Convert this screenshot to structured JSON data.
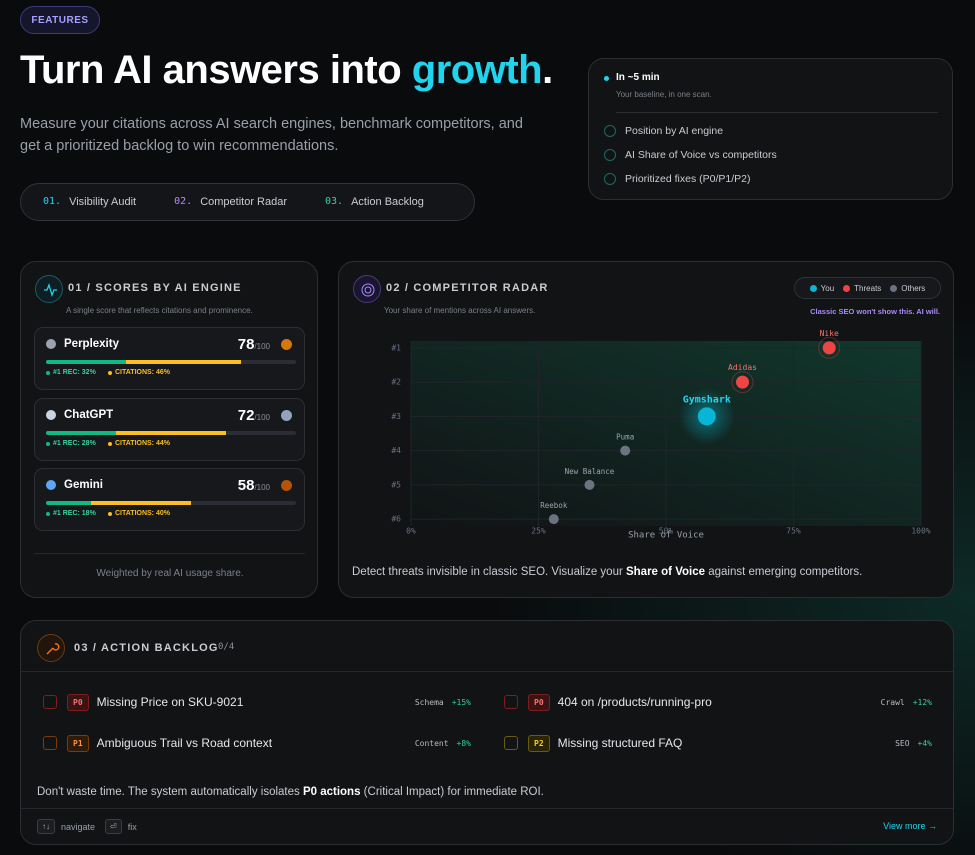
{
  "badge": "FEATURES",
  "hero": {
    "title_before": "Turn AI answers into ",
    "title_highlight": "growth",
    "title_after": ".",
    "subtitle": "Measure your citations across AI search engines, benchmark competitors, and get a prioritized backlog to win recommendations.",
    "tabs": [
      {
        "num": "01.",
        "label": "Visibility Audit"
      },
      {
        "num": "02.",
        "label": "Competitor Radar"
      },
      {
        "num": "03.",
        "label": "Action Backlog"
      }
    ]
  },
  "scan_card": {
    "title": "In ~5 min",
    "subtitle": "Your baseline, in one scan.",
    "checks": [
      "Position by AI engine",
      "AI Share of Voice vs competitors",
      "Prioritized fixes (P0/P1/P2)"
    ]
  },
  "scores": {
    "title": "01 / SCORES BY AI ENGINE",
    "subtitle": "A single score that reflects citations and prominence.",
    "engines": [
      {
        "name": "Perplexity",
        "score": 78,
        "max": "/100",
        "rec": {
          "value": 32,
          "label": "#1 REC: 32%"
        },
        "citations": {
          "value": 46,
          "label": "CITATIONS: 46%"
        }
      },
      {
        "name": "ChatGPT",
        "score": 72,
        "max": "/100",
        "rec": {
          "value": 28,
          "label": "#1 REC: 28%"
        },
        "citations": {
          "value": 44,
          "label": "CITATIONS: 44%"
        }
      },
      {
        "name": "Gemini",
        "score": 58,
        "max": "/100",
        "rec": {
          "value": 18,
          "label": "#1 REC: 18%"
        },
        "citations": {
          "value": 40,
          "label": "CITATIONS: 40%"
        }
      }
    ],
    "footer": "Weighted by real AI usage share."
  },
  "radar": {
    "title": "02 / COMPETITOR RADAR",
    "subtitle": "Your share of mentions across AI answers.",
    "note": "Classic SEO won't show this. AI will.",
    "chart_data": {
      "type": "scatter",
      "x_label": "Share of Voice",
      "xlim": [
        0,
        100
      ],
      "ylim": [
        6.2,
        0.8
      ],
      "xticks": [
        {
          "value": 0,
          "label": "0%"
        },
        {
          "value": 25,
          "label": "25%"
        },
        {
          "value": 50,
          "label": "50%"
        },
        {
          "value": 75,
          "label": "75%"
        },
        {
          "value": 100,
          "label": "100%"
        }
      ],
      "yticks": [
        {
          "value": 1,
          "label": "#1"
        },
        {
          "value": 2,
          "label": "#2"
        },
        {
          "value": 3,
          "label": "#3"
        },
        {
          "value": 4,
          "label": "#4"
        },
        {
          "value": 5,
          "label": "#5"
        },
        {
          "value": 6,
          "label": "#6"
        }
      ],
      "grid": true,
      "series": [
        {
          "name": "You",
          "color": "#06b6d4",
          "labels": [
            "Gymshark"
          ],
          "x": [
            58
          ],
          "y": [
            3
          ]
        },
        {
          "name": "Threats",
          "color": "#ef4444",
          "labels": [
            "Nike",
            "Adidas"
          ],
          "x": [
            82,
            65
          ],
          "y": [
            1,
            2
          ]
        },
        {
          "name": "Others",
          "color": "#6b7280",
          "labels": [
            "Puma",
            "New Balance",
            "Reebok"
          ],
          "x": [
            42,
            35,
            28
          ],
          "y": [
            4,
            5,
            6
          ]
        }
      ]
    },
    "footer_before": "Detect threats invisible in classic SEO. Visualize your ",
    "footer_bold": "Share of Voice",
    "footer_after": " against emerging competitors."
  },
  "backlog": {
    "title": "03 / ACTION BACKLOG",
    "count": "0/4",
    "items": [
      {
        "priority": "P0",
        "title": "Missing Price on SKU-9021",
        "tag": "Schema",
        "impact": "+15%"
      },
      {
        "priority": "P0",
        "title": "404 on /products/running-pro",
        "tag": "Crawl",
        "impact": "+12%"
      },
      {
        "priority": "P1",
        "title": "Ambiguous Trail vs Road context",
        "tag": "Content",
        "impact": "+8%"
      },
      {
        "priority": "P2",
        "title": "Missing structured FAQ",
        "tag": "SEO",
        "impact": "+4%"
      }
    ],
    "note_before": "Don't waste time. The system automatically isolates ",
    "note_bold": "P0 actions",
    "note_after": " (Critical Impact) for immediate ROI.",
    "keys": [
      {
        "key": "↑↓",
        "label": "navigate"
      },
      {
        "key": "⏎",
        "label": "fix"
      }
    ],
    "view_more": "View more →"
  }
}
